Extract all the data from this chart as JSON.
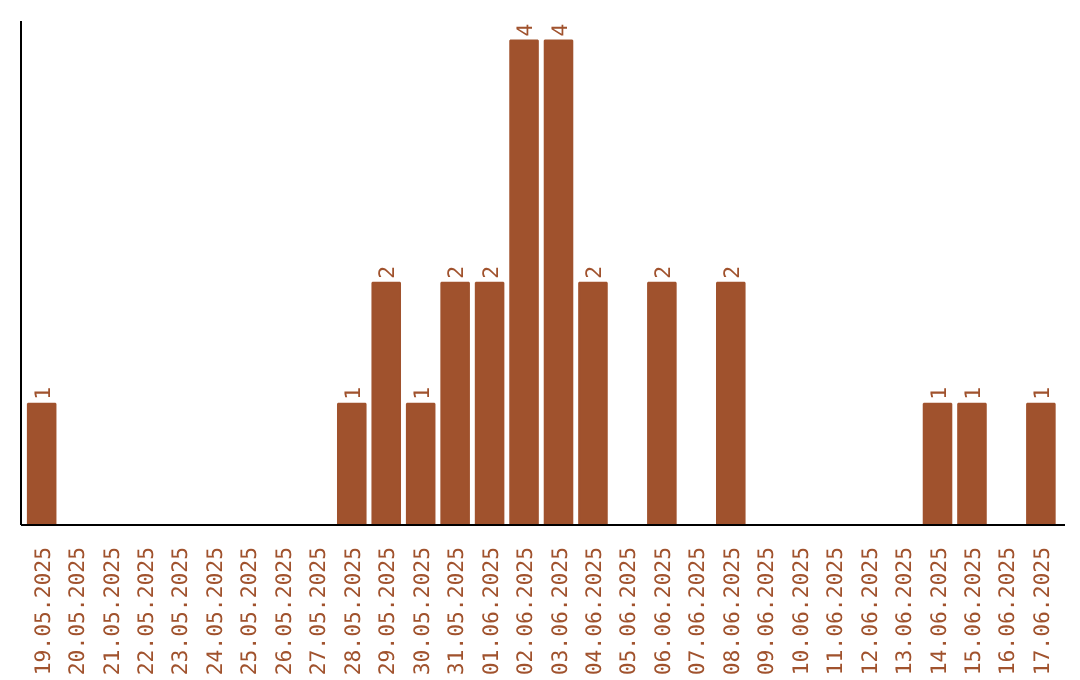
{
  "chart_data": {
    "type": "bar",
    "categories": [
      "19.05.2025",
      "20.05.2025",
      "21.05.2025",
      "22.05.2025",
      "23.05.2025",
      "24.05.2025",
      "25.05.2025",
      "26.05.2025",
      "27.05.2025",
      "28.05.2025",
      "29.05.2025",
      "30.05.2025",
      "31.05.2025",
      "01.06.2025",
      "02.06.2025",
      "03.06.2025",
      "04.06.2025",
      "05.06.2025",
      "06.06.2025",
      "07.06.2025",
      "08.06.2025",
      "09.06.2025",
      "10.06.2025",
      "11.06.2025",
      "12.06.2025",
      "13.06.2025",
      "14.06.2025",
      "15.06.2025",
      "16.06.2025",
      "17.06.2025"
    ],
    "values": [
      1,
      0,
      0,
      0,
      0,
      0,
      0,
      0,
      0,
      1,
      2,
      1,
      2,
      2,
      4,
      4,
      2,
      0,
      2,
      0,
      2,
      0,
      0,
      0,
      0,
      0,
      1,
      1,
      0,
      1
    ],
    "value_labels": [
      "1",
      null,
      null,
      null,
      null,
      null,
      null,
      null,
      null,
      "1",
      "2",
      "1",
      "2",
      "2",
      "4",
      "4",
      "2",
      null,
      "2",
      null,
      "2",
      null,
      null,
      null,
      null,
      null,
      "1",
      "1",
      null,
      "1"
    ],
    "color": "#a0522d",
    "grid": false,
    "tick_labels": "x"
  }
}
